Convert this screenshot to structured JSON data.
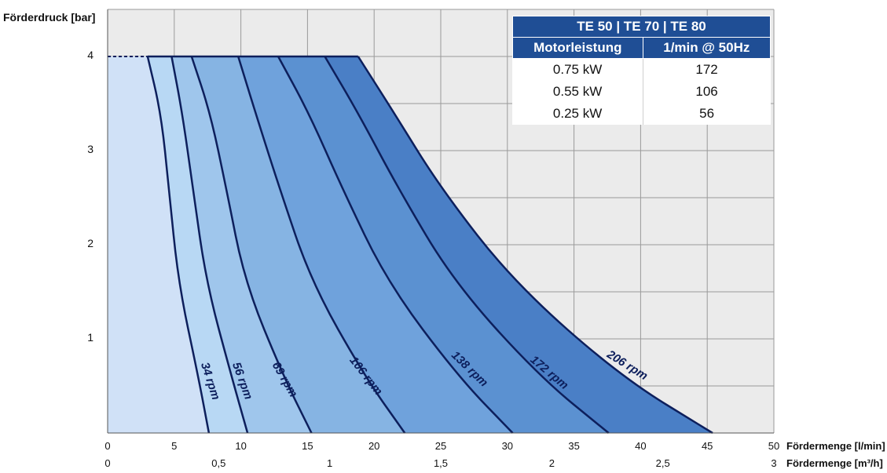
{
  "chart_data": {
    "type": "area",
    "title": "",
    "ylabel": "Förderdruck [bar]",
    "xlabel": "Fördermenge [l/min]",
    "x2label": "Fördermenge [m³/h]",
    "xlim": [
      0,
      50
    ],
    "ylim": [
      0,
      4.6
    ],
    "x_ticks": [
      "0",
      "5",
      "10",
      "15",
      "20",
      "25",
      "30",
      "35",
      "40",
      "45",
      "50"
    ],
    "x2_ticks": [
      "0",
      "0,5",
      "1",
      "1,5",
      "2",
      "2,5",
      "3"
    ],
    "y_ticks": [
      "1",
      "2",
      "3",
      "4"
    ],
    "max_pressure": 4,
    "grid": true,
    "series": [
      {
        "name": "34 rpm",
        "color": "#d0e1f7",
        "points": [
          [
            7.6,
            0
          ],
          [
            6.8,
            0.6
          ],
          [
            5.3,
            1.6
          ],
          [
            4.6,
            2.6
          ],
          [
            4.0,
            3.4
          ],
          [
            3.0,
            4.0
          ]
        ]
      },
      {
        "name": "56 rpm",
        "color": "#b8d8f4",
        "points": [
          [
            10.5,
            0
          ],
          [
            9.3,
            0.6
          ],
          [
            7.4,
            1.6
          ],
          [
            6.4,
            2.6
          ],
          [
            5.6,
            3.4
          ],
          [
            4.8,
            4.0
          ]
        ]
      },
      {
        "name": "69 rpm",
        "color": "#9fc6ec",
        "points": [
          [
            15.3,
            0
          ],
          [
            13.2,
            0.6
          ],
          [
            10.3,
            1.6
          ],
          [
            8.9,
            2.6
          ],
          [
            7.7,
            3.4
          ],
          [
            6.3,
            4.0
          ]
        ]
      },
      {
        "name": "106 rpm",
        "color": "#86b4e3",
        "points": [
          [
            22.3,
            0
          ],
          [
            19.3,
            0.6
          ],
          [
            15.3,
            1.6
          ],
          [
            12.9,
            2.6
          ],
          [
            11.1,
            3.4
          ],
          [
            9.8,
            4.0
          ]
        ]
      },
      {
        "name": "138 rpm",
        "color": "#6fa2dc",
        "points": [
          [
            30.4,
            0
          ],
          [
            26.3,
            0.6
          ],
          [
            21.0,
            1.6
          ],
          [
            17.6,
            2.6
          ],
          [
            15.1,
            3.4
          ],
          [
            12.8,
            4.0
          ]
        ]
      },
      {
        "name": "172 rpm",
        "color": "#5b91d1",
        "points": [
          [
            37.6,
            0
          ],
          [
            32.4,
            0.6
          ],
          [
            26.0,
            1.6
          ],
          [
            21.8,
            2.6
          ],
          [
            18.8,
            3.4
          ],
          [
            16.3,
            4.0
          ]
        ]
      },
      {
        "name": "206 rpm",
        "color": "#4a7fc6",
        "points": [
          [
            45.4,
            0
          ],
          [
            38.5,
            0.6
          ],
          [
            30.5,
            1.6
          ],
          [
            25.0,
            2.6
          ],
          [
            21.5,
            3.4
          ],
          [
            18.8,
            4.0
          ]
        ]
      }
    ]
  },
  "legend": {
    "title": "TE 50 | TE 70 | TE 80",
    "col1_header": "Motorleistung",
    "col2_header": "1/min @ 50Hz",
    "rows": [
      {
        "power": "0.75 kW",
        "rpm": "172"
      },
      {
        "power": "0.55 kW",
        "rpm": "106"
      },
      {
        "power": "0.25 kW",
        "rpm": "56"
      }
    ]
  }
}
